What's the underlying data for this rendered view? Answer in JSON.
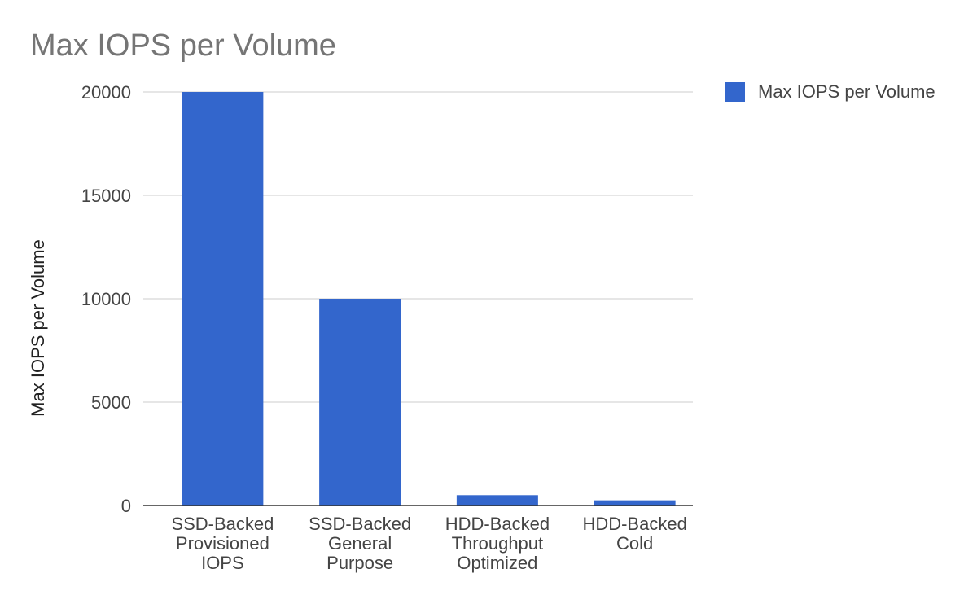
{
  "chart_data": {
    "type": "bar",
    "title": "Max IOPS per Volume",
    "xlabel": "",
    "ylabel": "Max IOPS per Volume",
    "categories": [
      [
        "SSD-Backed",
        "Provisioned",
        "IOPS"
      ],
      [
        "SSD-Backed",
        "General",
        "Purpose"
      ],
      [
        "HDD-Backed",
        "Throughput",
        "Optimized"
      ],
      [
        "HDD-Backed",
        "Cold"
      ]
    ],
    "series": [
      {
        "name": "Max IOPS per Volume",
        "values": [
          20000,
          10000,
          500,
          250
        ],
        "color": "#3366cc"
      }
    ],
    "ylim": [
      0,
      20000
    ],
    "yticks": [
      "0",
      "5000",
      "10000",
      "15000",
      "20000"
    ],
    "grid": true,
    "legend_position": "top-right"
  }
}
